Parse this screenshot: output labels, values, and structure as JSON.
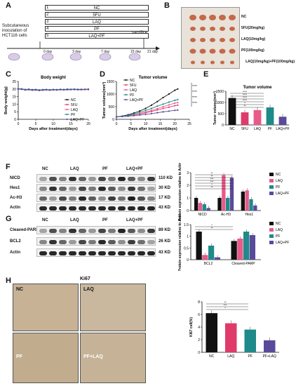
{
  "panel_letters": [
    "A",
    "B",
    "C",
    "D",
    "E",
    "F",
    "G",
    "H"
  ],
  "panelA": {
    "left_text": "Subcutaneous inoculation of HCT116 cells",
    "groups": [
      {
        "num": "1",
        "name": "NC"
      },
      {
        "num": "2",
        "name": "5FU"
      },
      {
        "num": "3",
        "name": "LAQ"
      },
      {
        "num": "4",
        "name": "PF"
      },
      {
        "num": "5",
        "name": "LAQ+PF"
      }
    ],
    "sacrifice": "sacrifice",
    "days": [
      "0 day",
      "3 day",
      "7 day",
      "15 day",
      "21 day"
    ]
  },
  "panelB": {
    "labels": [
      "NC",
      "5FU(20mg/kg)",
      "LAQ(10mg/kg)",
      "PF(100mg/kg)",
      "LAQ(10mg/kg)+PF(100mg/kg)"
    ]
  },
  "legend_groups": [
    "NC",
    "5FU",
    "LAQ",
    "PF",
    "LAQ+PF"
  ],
  "colors": {
    "NC": "#111111",
    "5FU": "#e03a6a",
    "LAQ": "#e85a8a",
    "PF": "#1f8a8a",
    "LAQ+PF": "#5a4a9a"
  },
  "chart_data": [
    {
      "id": "C",
      "type": "line",
      "title": "Body weight",
      "xlabel": "Days after treatment(days)",
      "ylabel": "Body weight(g)",
      "ylim": [
        0,
        25
      ],
      "yticks": [
        0,
        5,
        10,
        15,
        20,
        25
      ],
      "xticks": [
        0,
        5,
        10,
        15,
        20
      ],
      "x": [
        0,
        1,
        2,
        3,
        4,
        5,
        6,
        7,
        8,
        9,
        10,
        11,
        12,
        13,
        14,
        15,
        16,
        17,
        18,
        19,
        20
      ],
      "series": [
        {
          "name": "NC",
          "values": [
            20,
            20,
            19.6,
            19.8,
            19.5,
            19.6,
            19.3,
            19.5,
            19.6,
            19.4,
            19.6,
            19.5,
            19.7,
            19.6,
            19.8,
            19.7,
            19.8,
            19.6,
            19.7,
            19.7,
            19.8
          ]
        },
        {
          "name": "5FU",
          "values": [
            20,
            19.8,
            19.3,
            19.5,
            19.2,
            19.3,
            19,
            19.2,
            19.4,
            19.2,
            19.4,
            19.3,
            19.5,
            19.4,
            19.5,
            19.6,
            19.6,
            19.5,
            19.5,
            19.6,
            19.6
          ]
        },
        {
          "name": "LAQ",
          "values": [
            19.8,
            19.9,
            19.5,
            19.6,
            19.4,
            19.5,
            19.2,
            19.4,
            19.5,
            19.3,
            19.5,
            19.4,
            19.6,
            19.5,
            19.7,
            19.6,
            19.7,
            19.6,
            19.6,
            19.7,
            19.7
          ]
        },
        {
          "name": "PF",
          "values": [
            20.2,
            20.1,
            19.7,
            19.9,
            19.6,
            19.7,
            19.4,
            19.6,
            19.7,
            19.5,
            19.7,
            19.6,
            19.8,
            19.7,
            19.9,
            19.8,
            19.9,
            19.8,
            19.8,
            19.8,
            19.9
          ]
        },
        {
          "name": "LAQ+PF",
          "values": [
            20,
            19.8,
            19.4,
            19.6,
            19.3,
            19.4,
            19.1,
            19.3,
            19.5,
            19.3,
            19.5,
            19.4,
            19.6,
            19.5,
            19.6,
            19.6,
            19.7,
            19.6,
            19.7,
            19.7,
            19.8
          ]
        }
      ]
    },
    {
      "id": "D",
      "type": "line",
      "title": "Tumor volume",
      "xlabel": "Days after treatment(days)",
      "ylabel": "Tumor volume(mm³)",
      "ylim": [
        0,
        1500
      ],
      "yticks": [
        0,
        500,
        1000,
        1500
      ],
      "xticks": [
        0,
        5,
        10,
        15,
        20,
        25
      ],
      "x": [
        0,
        2,
        4,
        6,
        8,
        10,
        12,
        14,
        16,
        18,
        20,
        21
      ],
      "series": [
        {
          "name": "NC",
          "values": [
            100,
            130,
            180,
            250,
            330,
            430,
            560,
            700,
            860,
            1000,
            1150,
            1200
          ]
        },
        {
          "name": "5FU",
          "values": [
            100,
            115,
            140,
            175,
            215,
            260,
            310,
            370,
            430,
            480,
            540,
            560
          ]
        },
        {
          "name": "LAQ",
          "values": [
            100,
            118,
            145,
            185,
            230,
            285,
            350,
            420,
            500,
            570,
            640,
            660
          ]
        },
        {
          "name": "PF",
          "values": [
            100,
            120,
            160,
            215,
            280,
            350,
            430,
            520,
            600,
            680,
            750,
            780
          ]
        },
        {
          "name": "LAQ+PF",
          "values": [
            100,
            110,
            125,
            145,
            170,
            195,
            225,
            260,
            295,
            325,
            355,
            365
          ]
        }
      ],
      "annotations": [
        "****",
        "****",
        "****",
        "****"
      ]
    },
    {
      "id": "E",
      "type": "bar",
      "title": "Tumor volume",
      "ylabel": "Tumor volume(mm³)",
      "categories": [
        "NC",
        "5FU",
        "LAQ",
        "PF",
        "LAQ+PF"
      ],
      "values": [
        1200,
        560,
        660,
        780,
        365
      ],
      "ylim": [
        0,
        1500
      ],
      "yticks": [
        0,
        500,
        1000,
        1500
      ],
      "annotations": [
        "****",
        "****",
        "****",
        "****",
        "*",
        "**"
      ]
    },
    {
      "id": "F",
      "type": "bar",
      "ylabel": "Protein expression relative to Actin",
      "categories": [
        "NICD",
        "Ac-H3",
        "Hes1"
      ],
      "series": [
        {
          "name": "NC",
          "values": [
            1.0,
            1.0,
            1.5
          ]
        },
        {
          "name": "LAQ",
          "values": [
            0.6,
            2.8,
            1.6
          ]
        },
        {
          "name": "PF",
          "values": [
            0.5,
            1.0,
            0.9
          ]
        },
        {
          "name": "LAQ+PF",
          "values": [
            0.2,
            2.6,
            0.4
          ]
        }
      ],
      "ylim": [
        0,
        3
      ],
      "yticks": [
        0,
        1,
        2,
        3
      ],
      "annotations": [
        "**",
        "**",
        "***",
        "***",
        "*",
        "**"
      ]
    },
    {
      "id": "G",
      "type": "bar",
      "ylabel": "Protein expression relative to Actin",
      "categories": [
        "BCL2",
        "Cleaved-PARP"
      ],
      "series": [
        {
          "name": "NC",
          "values": [
            1.2,
            0.8
          ]
        },
        {
          "name": "LAQ",
          "values": [
            0.2,
            0.9
          ]
        },
        {
          "name": "PF",
          "values": [
            0.6,
            1.2
          ]
        },
        {
          "name": "LAQ+PF",
          "values": [
            0.1,
            1.05
          ]
        }
      ],
      "ylim": [
        0,
        1.5
      ],
      "yticks": [
        0,
        0.5,
        1.0,
        1.5
      ],
      "annotations": [
        "*",
        "**"
      ]
    },
    {
      "id": "H",
      "type": "bar",
      "ylabel": "KI67 cell(%)",
      "categories": [
        "NC",
        "LAQ",
        "PF",
        "PF+LAQ"
      ],
      "values": [
        6.2,
        4.6,
        3.6,
        1.9
      ],
      "ylim": [
        0,
        8
      ],
      "yticks": [
        0,
        2,
        4,
        6,
        8
      ],
      "annotations": [
        "**",
        "***",
        "*"
      ]
    }
  ],
  "panelF": {
    "groups": [
      "NC",
      "LAQ",
      "PF",
      "LAQ+PF"
    ],
    "blots": [
      {
        "name": "NICD",
        "kd": "110 KD"
      },
      {
        "name": "Hes1",
        "kd": "30 KD"
      },
      {
        "name": "Ac-H3",
        "kd": "17 KD"
      },
      {
        "name": "Actin",
        "kd": "43 KD"
      }
    ]
  },
  "panelG": {
    "groups": [
      "NC",
      "LAQ",
      "PF",
      "LAQ+PF"
    ],
    "blots": [
      {
        "name": "Cleaved-PARP",
        "kd": "89 KD"
      },
      {
        "name": "BCL2",
        "kd": "26 KD"
      },
      {
        "name": "Actin",
        "kd": "43 KD"
      }
    ]
  },
  "panelH": {
    "title": "Ki67",
    "images": [
      "NC",
      "LAQ",
      "PF",
      "PF+LAQ"
    ]
  }
}
